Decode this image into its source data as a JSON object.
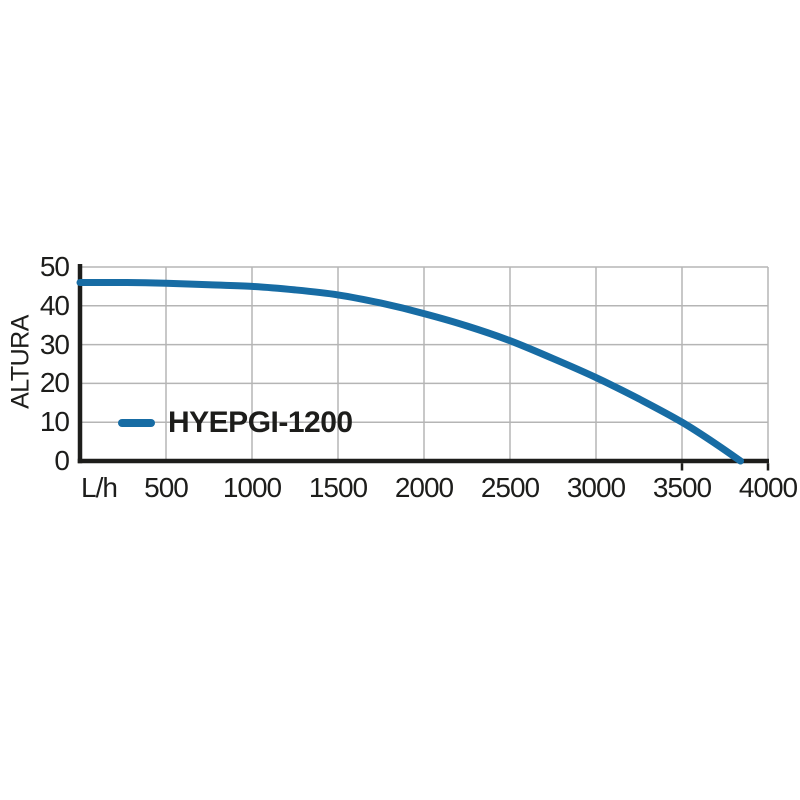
{
  "page": {
    "background": "#ffffff"
  },
  "chart_data": {
    "type": "line",
    "title": "",
    "xlabel": "L/h",
    "ylabel": "ALTURA",
    "xlim": [
      0,
      4000
    ],
    "ylim": [
      0,
      50
    ],
    "x_ticks": [
      "500",
      "1000",
      "1500",
      "2000",
      "2500",
      "3000",
      "3500",
      "4000"
    ],
    "y_ticks": [
      "0",
      "10",
      "20",
      "30",
      "40",
      "50"
    ],
    "grid": true,
    "legend": {
      "position": "inside-bottom-left",
      "label": "HYEPGI-1200"
    },
    "series": [
      {
        "name": "HYEPGI-1200",
        "color": "#176CA4",
        "points": [
          [
            0,
            46
          ],
          [
            250,
            46
          ],
          [
            500,
            45.8
          ],
          [
            750,
            45.4
          ],
          [
            1000,
            45
          ],
          [
            1250,
            44.1
          ],
          [
            1500,
            42.8
          ],
          [
            1750,
            40.7
          ],
          [
            2000,
            38
          ],
          [
            2250,
            34.8
          ],
          [
            2500,
            31
          ],
          [
            2750,
            26.4
          ],
          [
            3000,
            21.5
          ],
          [
            3250,
            16
          ],
          [
            3500,
            10
          ],
          [
            3700,
            4.3
          ],
          [
            3840,
            0
          ]
        ]
      }
    ],
    "x_axis_minor_ticks_below": [
      3500,
      4000
    ]
  },
  "colors": {
    "curve": "#176CA4",
    "grid": "#b5b5b5",
    "axis": "#1d1d1b",
    "text": "#1d1d1b"
  }
}
